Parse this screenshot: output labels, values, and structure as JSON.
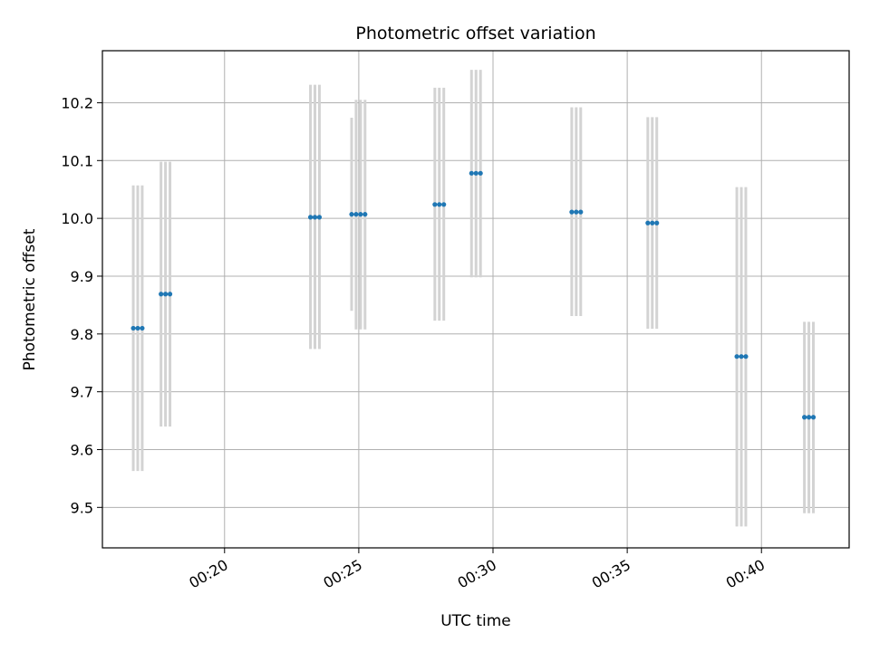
{
  "chart_data": {
    "type": "scatter",
    "title": "Photometric offset variation",
    "xlabel": "UTC time",
    "ylabel": "Photometric offset",
    "xlim": [
      "00:15:27",
      "00:43:16"
    ],
    "ylim": [
      9.43,
      10.29
    ],
    "x_ticks": [
      "00:20",
      "00:25",
      "00:30",
      "00:35",
      "00:40"
    ],
    "y_ticks": [
      "9.5",
      "9.6",
      "9.7",
      "9.8",
      "9.9",
      "10.0",
      "10.1",
      "10.2"
    ],
    "grid": true,
    "marker_color": "#1f77b4",
    "errorbar_color": "#d3d3d3",
    "points": [
      {
        "x": "00:16:36",
        "y": 9.81,
        "yerr_low": 9.563,
        "yerr_high": 10.057
      },
      {
        "x": "00:16:46",
        "y": 9.81,
        "yerr_low": 9.563,
        "yerr_high": 10.057
      },
      {
        "x": "00:16:56",
        "y": 9.81,
        "yerr_low": 9.563,
        "yerr_high": 10.057
      },
      {
        "x": "00:17:38",
        "y": 9.869,
        "yerr_low": 9.64,
        "yerr_high": 10.098
      },
      {
        "x": "00:17:48",
        "y": 9.869,
        "yerr_low": 9.64,
        "yerr_high": 10.098
      },
      {
        "x": "00:17:58",
        "y": 9.869,
        "yerr_low": 9.64,
        "yerr_high": 10.098
      },
      {
        "x": "00:23:12",
        "y": 10.002,
        "yerr_low": 9.774,
        "yerr_high": 10.231
      },
      {
        "x": "00:23:22",
        "y": 10.002,
        "yerr_low": 9.774,
        "yerr_high": 10.231
      },
      {
        "x": "00:23:32",
        "y": 10.002,
        "yerr_low": 9.774,
        "yerr_high": 10.231
      },
      {
        "x": "00:24:44",
        "y": 10.007,
        "yerr_low": 9.84,
        "yerr_high": 10.174
      },
      {
        "x": "00:24:54",
        "y": 10.007,
        "yerr_low": 9.808,
        "yerr_high": 10.205
      },
      {
        "x": "00:25:04",
        "y": 10.007,
        "yerr_low": 9.808,
        "yerr_high": 10.205
      },
      {
        "x": "00:25:14",
        "y": 10.007,
        "yerr_low": 9.808,
        "yerr_high": 10.205
      },
      {
        "x": "00:27:50",
        "y": 10.024,
        "yerr_low": 9.823,
        "yerr_high": 10.226
      },
      {
        "x": "00:28:00",
        "y": 10.024,
        "yerr_low": 9.823,
        "yerr_high": 10.226
      },
      {
        "x": "00:28:10",
        "y": 10.024,
        "yerr_low": 9.823,
        "yerr_high": 10.226
      },
      {
        "x": "00:29:12",
        "y": 10.078,
        "yerr_low": 9.898,
        "yerr_high": 10.257
      },
      {
        "x": "00:29:22",
        "y": 10.078,
        "yerr_low": 9.898,
        "yerr_high": 10.257
      },
      {
        "x": "00:29:32",
        "y": 10.078,
        "yerr_low": 9.898,
        "yerr_high": 10.257
      },
      {
        "x": "00:32:56",
        "y": 10.011,
        "yerr_low": 9.831,
        "yerr_high": 10.192
      },
      {
        "x": "00:33:06",
        "y": 10.011,
        "yerr_low": 9.831,
        "yerr_high": 10.192
      },
      {
        "x": "00:33:16",
        "y": 10.011,
        "yerr_low": 9.831,
        "yerr_high": 10.192
      },
      {
        "x": "00:35:46",
        "y": 9.992,
        "yerr_low": 9.809,
        "yerr_high": 10.175
      },
      {
        "x": "00:35:56",
        "y": 9.992,
        "yerr_low": 9.809,
        "yerr_high": 10.175
      },
      {
        "x": "00:36:06",
        "y": 9.992,
        "yerr_low": 9.809,
        "yerr_high": 10.175
      },
      {
        "x": "00:39:05",
        "y": 9.761,
        "yerr_low": 9.467,
        "yerr_high": 10.054
      },
      {
        "x": "00:39:15",
        "y": 9.761,
        "yerr_low": 9.467,
        "yerr_high": 10.054
      },
      {
        "x": "00:39:25",
        "y": 9.761,
        "yerr_low": 9.467,
        "yerr_high": 10.054
      },
      {
        "x": "00:41:36",
        "y": 9.656,
        "yerr_low": 9.49,
        "yerr_high": 9.821
      },
      {
        "x": "00:41:46",
        "y": 9.656,
        "yerr_low": 9.49,
        "yerr_high": 9.821
      },
      {
        "x": "00:41:56",
        "y": 9.656,
        "yerr_low": 9.49,
        "yerr_high": 9.821
      }
    ]
  }
}
